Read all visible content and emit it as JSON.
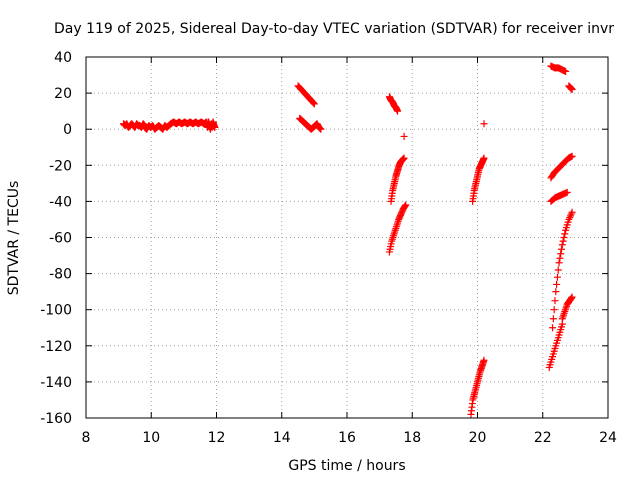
{
  "chart_data": {
    "type": "scatter",
    "title": "Day 119 of 2025, Sidereal Day-to-day VTEC variation (SDTVAR) for receiver invr",
    "xlabel": "GPS time / hours",
    "ylabel": "SDTVAR / TECUs",
    "xlim": [
      8,
      24
    ],
    "ylim": [
      -160,
      40
    ],
    "xticks": [
      8,
      10,
      12,
      14,
      16,
      18,
      20,
      22,
      24
    ],
    "yticks": [
      40,
      20,
      0,
      -20,
      -40,
      -60,
      -80,
      -100,
      -120,
      -140,
      -160
    ],
    "grid": true,
    "legend": "none",
    "marker": "+",
    "color": "#ff0000",
    "series": [
      {
        "segments": [
          {
            "x_from": 9.15,
            "x_to": 9.8,
            "y_values": [
              3,
              2,
              3,
              1,
              2,
              3,
              2,
              1,
              3,
              2,
              2,
              1,
              3,
              2
            ]
          },
          {
            "x_from": 9.8,
            "x_to": 10.6,
            "y_values": [
              1,
              0,
              2,
              1,
              2,
              0,
              1,
              2,
              1,
              0,
              2,
              1,
              2,
              3
            ]
          },
          {
            "x_from": 10.6,
            "x_to": 11.7,
            "y_values": [
              3,
              4,
              3,
              4,
              3,
              4,
              3,
              4,
              3,
              4,
              3,
              4,
              3,
              4
            ]
          },
          {
            "x_from": 11.7,
            "x_to": 11.95,
            "y_values": [
              3,
              1,
              4,
              2,
              0,
              3,
              1,
              4,
              2,
              1
            ]
          },
          {
            "x_from": 14.5,
            "x_to": 15.0,
            "y_values": [
              24,
              22,
              20,
              18,
              16,
              14
            ]
          },
          {
            "x_from": 14.55,
            "x_to": 15.2,
            "y_values": [
              6,
              5,
              4,
              3,
              2,
              1,
              0,
              1,
              2,
              3,
              1,
              0
            ]
          },
          {
            "x_from": 17.3,
            "x_to": 17.55,
            "y_values": [
              18,
              16,
              15,
              13,
              12,
              10
            ]
          },
          {
            "x_from": 17.35,
            "x_to": 17.75,
            "y_values": [
              -40,
              -34,
              -30,
              -26,
              -23,
              -20,
              -18,
              -17,
              -16
            ]
          },
          {
            "x_from": 17.3,
            "x_to": 17.8,
            "y_values": [
              -68,
              -62,
              -58,
              -54,
              -50,
              -47,
              -44,
              -42
            ]
          },
          {
            "x_from": 17.75,
            "x_to": 17.75,
            "y_values": [
              -4
            ]
          },
          {
            "x_from": 19.85,
            "x_to": 20.2,
            "y_values": [
              -40,
              -34,
              -30,
              -26,
              -22,
              -20,
              -18,
              -16
            ]
          },
          {
            "x_from": 19.8,
            "x_to": 20.2,
            "y_values": [
              -158,
              -150,
              -146,
              -142,
              -138,
              -134,
              -131,
              -128
            ]
          },
          {
            "x_from": 20.2,
            "x_to": 20.2,
            "y_values": [
              3
            ]
          },
          {
            "x_from": 22.25,
            "x_to": 22.7,
            "y_values": [
              35,
              34,
              34,
              33,
              32
            ]
          },
          {
            "x_from": 22.8,
            "x_to": 22.9,
            "y_values": [
              24,
              23,
              22
            ]
          },
          {
            "x_from": 22.25,
            "x_to": 22.9,
            "y_values": [
              -27,
              -24,
              -22,
              -20,
              -18,
              -16,
              -15
            ]
          },
          {
            "x_from": 22.25,
            "x_to": 22.75,
            "y_values": [
              -40,
              -38,
              -37,
              -36,
              -35
            ]
          },
          {
            "x_from": 22.3,
            "x_to": 22.9,
            "y_values": [
              -110,
              -90,
              -74,
              -64,
              -56,
              -50,
              -46
            ]
          },
          {
            "x_from": 22.2,
            "x_to": 22.6,
            "y_values": [
              -132,
              -126,
              -120,
              -114,
              -108
            ]
          },
          {
            "x_from": 22.6,
            "x_to": 22.9,
            "y_values": [
              -105,
              -101,
              -97,
              -95,
              -93
            ]
          }
        ]
      }
    ]
  }
}
